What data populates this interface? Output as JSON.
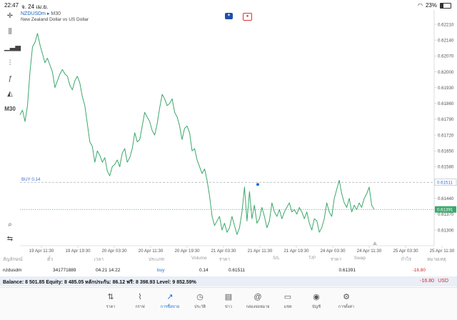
{
  "status": {
    "time": "22:47",
    "date": "จ. 24 เม.ย.",
    "battery": "23%"
  },
  "symbol": {
    "name": "NZDUSDm",
    "arrow": "▸",
    "timeframe": "M30",
    "description": "New Zealand Dollar vs US Dollar"
  },
  "tools": [
    "crosshair-icon",
    "candles-icon",
    "bars-icon",
    "indicators-icon",
    "function-icon",
    "objects-icon"
  ],
  "timeframe_button": "M30",
  "chart_data": {
    "type": "line",
    "ylim": [
      0.6125,
      0.6224
    ],
    "y_ticks": [
      "0.62210",
      "0.62140",
      "0.62070",
      "0.62000",
      "0.61930",
      "0.61860",
      "0.61790",
      "0.61720",
      "0.61650",
      "0.61580",
      "0.61511",
      "0.61440",
      "0.61391",
      "0.61370",
      "0.61300"
    ],
    "x_ticks": [
      "19 Apr 11:30",
      "19 Apr 19:30",
      "20 Apr 03:30",
      "20 Apr 11:30",
      "20 Apr 19:30",
      "21 Apr 03:30",
      "21 Apr 11:30",
      "21 Apr 19:30",
      "24 Apr 03:30",
      "24 Apr 11:30",
      "25 Apr 03:30",
      "25 Apr 11:30",
      "25 Apr 19:30"
    ],
    "series": [
      {
        "values": [
          0.6181,
          0.6183,
          0.6178,
          0.6185,
          0.62,
          0.6211,
          0.6213,
          0.6217,
          0.6212,
          0.6208,
          0.6204,
          0.6206,
          0.6203,
          0.62,
          0.6193,
          0.6196,
          0.6199,
          0.6201,
          0.6199,
          0.6198,
          0.6194,
          0.6192,
          0.6196,
          0.6198,
          0.6195,
          0.6189,
          0.6185,
          0.6177,
          0.6169,
          0.6167,
          0.616,
          0.6165,
          0.6163,
          0.616,
          0.6162,
          0.6156,
          0.6154,
          0.6158,
          0.6159,
          0.6161,
          0.6158,
          0.6164,
          0.6166,
          0.616,
          0.6162,
          0.6166,
          0.6173,
          0.6169,
          0.617,
          0.6176,
          0.6182,
          0.618,
          0.6178,
          0.6174,
          0.6172,
          0.6177,
          0.6184,
          0.619,
          0.6188,
          0.6185,
          0.6186,
          0.6188,
          0.6182,
          0.618,
          0.6176,
          0.617,
          0.6175,
          0.6176,
          0.6173,
          0.6165,
          0.6166,
          0.6161,
          0.6158,
          0.6155,
          0.6157,
          0.6152,
          0.6145,
          0.6136,
          0.6132,
          0.6134,
          0.6136,
          0.613,
          0.6133,
          0.6129,
          0.6131,
          0.6136,
          0.6132,
          0.6128,
          0.6131,
          0.6138,
          0.6149,
          0.6134,
          0.6147,
          0.6135,
          0.6141,
          0.6133,
          0.6135,
          0.614,
          0.6136,
          0.6131,
          0.6134,
          0.6142,
          0.6138,
          0.6136,
          0.6139,
          0.6135,
          0.6138,
          0.614,
          0.6142,
          0.6138,
          0.6139,
          0.6137,
          0.614,
          0.6138,
          0.6135,
          0.6138,
          0.6133,
          0.613,
          0.6135,
          0.6134,
          0.6129,
          0.6131,
          0.6135,
          0.6142,
          0.6138,
          0.6136,
          0.6144,
          0.6148,
          0.6152,
          0.6146,
          0.6142,
          0.614,
          0.6144,
          0.6138,
          0.6141,
          0.6139,
          0.6142,
          0.614,
          0.6144,
          0.6146,
          0.6149,
          0.6141,
          0.61391
        ]
      }
    ],
    "buy_line": {
      "label": "BUY 0.14",
      "price": 0.61511,
      "price_label": "0.61511"
    },
    "current_price": {
      "price": 0.61391,
      "price_label": "0.61391"
    }
  },
  "positions": {
    "headers": [
      "สัญลักษณ์",
      "ตั๋ว",
      "เวลา",
      "ประเภท",
      "Volume",
      "ราคา",
      "S/L",
      "T/P",
      "ราคา",
      "Swap",
      "กำไร"
    ],
    "rows": [
      {
        "symbol": "nzdusdm",
        "ticket": "341771889",
        "time": "04.21 14:22",
        "type": "buy",
        "volume": "0.14",
        "open_price": "0.61511",
        "sl": "",
        "tp": "",
        "price": "0.61391",
        "swap": "",
        "profit": "-16.80"
      }
    ]
  },
  "balance": {
    "text": "Balance: 8 501.85 Equity: 8 485.05 หลักประกัน: 86.12 ฟรี: 8 398.93 Level: 9 852.59%",
    "profit": "-16.80",
    "currency": "USD"
  },
  "tabs": [
    {
      "label": "ราคา",
      "icon": "quotes-icon"
    },
    {
      "label": "กราฟ",
      "icon": "chart-icon"
    },
    {
      "label": "การซื้อขาย",
      "icon": "trade-icon",
      "active": true
    },
    {
      "label": "ประวัติ",
      "icon": "history-icon"
    },
    {
      "label": "ข่าว",
      "icon": "news-icon"
    },
    {
      "label": "กล่องจดหมาย",
      "icon": "mailbox-icon"
    },
    {
      "label": "แชท",
      "icon": "chat-icon"
    },
    {
      "label": "บัญชี",
      "icon": "account-icon"
    },
    {
      "label": "การตั้งค่า",
      "icon": "settings-icon"
    }
  ],
  "colors": {
    "line": "#3aa86b",
    "buy_line": "#9aa0a6",
    "price_line": "#3aa86b",
    "accent": "#1a6fd6",
    "loss": "#d12a2a"
  }
}
